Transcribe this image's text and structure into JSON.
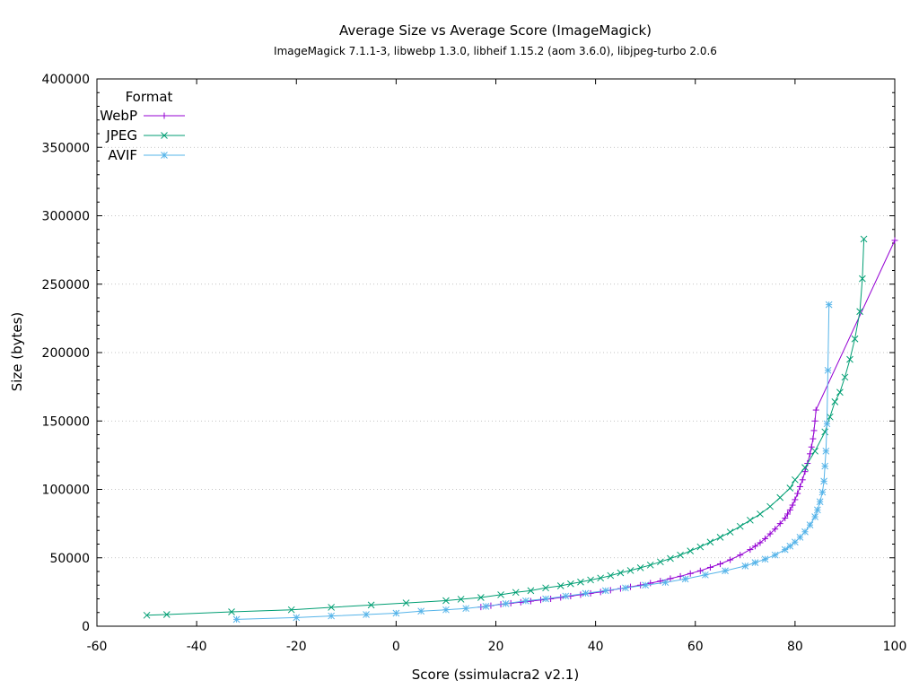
{
  "chart_data": {
    "type": "line",
    "title": "Average Size vs Average Score (ImageMagick)",
    "subtitle": "ImageMagick 7.1.1-3, libwebp 1.3.0, libheif 1.15.2 (aom 3.6.0), libjpeg-turbo 2.0.6",
    "xlabel": "Score (ssimulacra2 v2.1)",
    "ylabel": "Size (bytes)",
    "xlim": [
      -60,
      100
    ],
    "ylim": [
      0,
      400000
    ],
    "x_ticks": [
      -60,
      -40,
      -20,
      0,
      20,
      40,
      60,
      80,
      100
    ],
    "y_ticks": [
      0,
      50000,
      100000,
      150000,
      200000,
      250000,
      300000,
      350000,
      400000
    ],
    "grid": "dotted, y-axis only",
    "legend": {
      "title": "Format",
      "placement": "top-left"
    },
    "series": [
      {
        "name": "WebP",
        "color": "#9400d3",
        "marker": "plus",
        "x": [
          17,
          19,
          21,
          23,
          25,
          27,
          29,
          31,
          33,
          35,
          37,
          39,
          41,
          43,
          45,
          47,
          49,
          51,
          53,
          55,
          57,
          59,
          61,
          63,
          65,
          67,
          69,
          71,
          72,
          73,
          74,
          75,
          76,
          77,
          78,
          78.5,
          79,
          79.5,
          80,
          80.5,
          81,
          81.5,
          82,
          82.5,
          83,
          83.3,
          83.6,
          83.8,
          84,
          84.2,
          100
        ],
        "y": [
          14000,
          15000,
          16000,
          16800,
          17500,
          18300,
          19200,
          20000,
          21000,
          22000,
          23000,
          24000,
          25000,
          26300,
          27500,
          28800,
          30000,
          31500,
          33000,
          34800,
          36500,
          38500,
          40500,
          43000,
          45500,
          48500,
          52000,
          56000,
          58500,
          61000,
          64000,
          67500,
          71000,
          75000,
          79000,
          82000,
          85000,
          88500,
          92500,
          97000,
          102000,
          107000,
          113000,
          119000,
          126000,
          131000,
          137000,
          143000,
          150000,
          158000,
          282000
        ]
      },
      {
        "name": "JPEG",
        "color": "#009e73",
        "marker": "cross",
        "x": [
          -50,
          -46,
          -33,
          -21,
          -13,
          -5,
          2,
          10,
          13,
          17,
          21,
          24,
          27,
          30,
          33,
          35,
          37,
          39,
          41,
          43,
          45,
          47,
          49,
          51,
          53,
          55,
          57,
          59,
          61,
          63,
          65,
          67,
          69,
          71,
          73,
          75,
          77,
          79,
          80,
          82,
          84,
          86,
          87,
          88,
          89,
          90,
          91,
          92,
          93,
          93.5,
          93.8
        ],
        "y": [
          8000,
          8500,
          10500,
          12000,
          13800,
          15500,
          17000,
          18700,
          19700,
          21000,
          23000,
          24700,
          26000,
          28000,
          29500,
          31000,
          32300,
          33800,
          35200,
          37000,
          39000,
          40700,
          42700,
          44700,
          47000,
          49500,
          52000,
          55000,
          58000,
          61500,
          65000,
          68800,
          73000,
          77500,
          82000,
          87500,
          94000,
          101000,
          107000,
          116000,
          128000,
          142000,
          153000,
          164000,
          171000,
          182000,
          195000,
          210000,
          230000,
          254000,
          283000
        ]
      },
      {
        "name": "AVIF",
        "color": "#56b4e9",
        "marker": "star",
        "x": [
          -32,
          -20,
          -13,
          -6,
          0,
          5,
          10,
          14,
          18,
          22,
          26,
          30,
          34,
          38,
          42,
          46,
          50,
          54,
          58,
          62,
          66,
          70,
          72,
          74,
          76,
          78,
          79,
          80,
          81,
          82,
          83,
          84,
          84.5,
          85,
          85.5,
          85.8,
          86,
          86.2,
          86.4,
          86.6,
          86.8
        ],
        "y": [
          5000,
          6300,
          7500,
          8500,
          9500,
          11000,
          12000,
          13000,
          14500,
          16500,
          18500,
          20000,
          22000,
          24000,
          26000,
          28000,
          30000,
          32000,
          34500,
          37500,
          40500,
          44000,
          46500,
          49000,
          52000,
          56000,
          58500,
          61500,
          65000,
          69000,
          74000,
          80000,
          85000,
          91000,
          98000,
          106000,
          117000,
          128000,
          148000,
          187000,
          235000
        ]
      }
    ]
  }
}
